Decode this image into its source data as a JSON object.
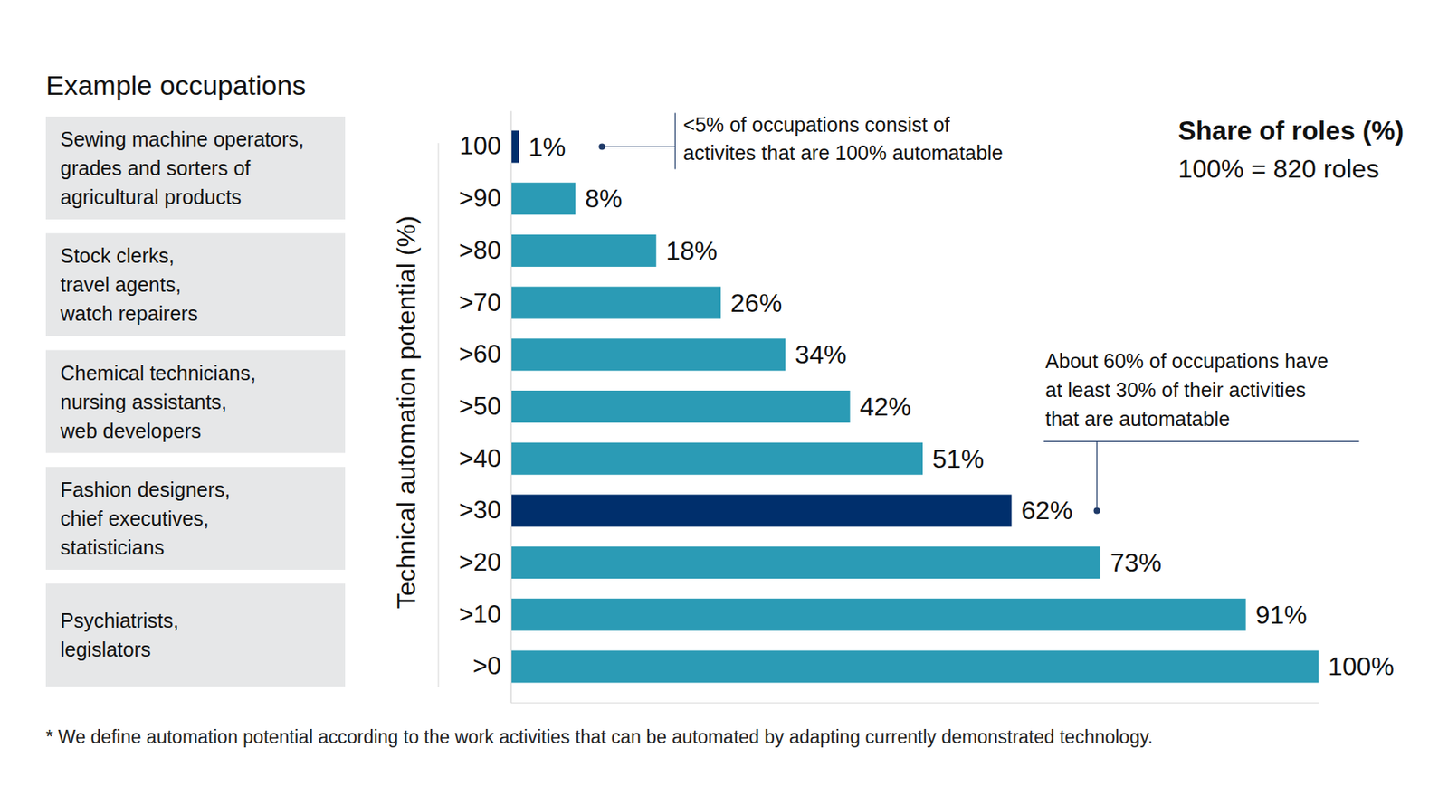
{
  "chart_data": {
    "type": "bar",
    "orientation": "horizontal",
    "title": "Share of roles (%)",
    "subtitle": "100% = 820 roles",
    "ylabel": "Technical automation potential (%)",
    "categories": [
      "100",
      ">90",
      ">80",
      ">70",
      ">60",
      ">50",
      ">40",
      ">30",
      ">20",
      ">10",
      ">0"
    ],
    "values": [
      1,
      8,
      18,
      26,
      34,
      42,
      51,
      62,
      73,
      91,
      100
    ],
    "value_labels": [
      "1%",
      "8%",
      "18%",
      "26%",
      "34%",
      "42%",
      "51%",
      "62%",
      "73%",
      "91%",
      "100%"
    ],
    "data_labels": true,
    "colors": [
      "#002f6c",
      "#2b9bb5",
      "#2b9bb5",
      "#2b9bb5",
      "#2b9bb5",
      "#2b9bb5",
      "#2b9bb5",
      "#002f6c",
      "#2b9bb5",
      "#2b9bb5",
      "#2b9bb5"
    ],
    "xlim": [
      0,
      100
    ],
    "xticks": [],
    "tick_labels": "y",
    "grid": false,
    "annotations": [
      {
        "category": "100",
        "lines": [
          "<5% of occupations consist of",
          "activites that are 100% automatable"
        ]
      },
      {
        "category": ">30",
        "lines": [
          "About 60% of occupations have",
          "at least 30% of their activities",
          "that are automatable"
        ]
      }
    ],
    "footnote": "* We define automation potential according to the work activities that can be automated by adapting currently demonstrated technology."
  },
  "example_occupations": {
    "title": "Example occupations",
    "groups": [
      [
        "Sewing machine operators,",
        "grades and sorters of",
        "agricultural products"
      ],
      [
        "Stock clerks,",
        "travel agents,",
        "watch repairers"
      ],
      [
        "Chemical technicians,",
        "nursing assistants,",
        "web developers"
      ],
      [
        "Fashion designers,",
        "chief executives,",
        "statisticians"
      ],
      [
        "Psychiatrists,",
        "legislators"
      ]
    ]
  }
}
